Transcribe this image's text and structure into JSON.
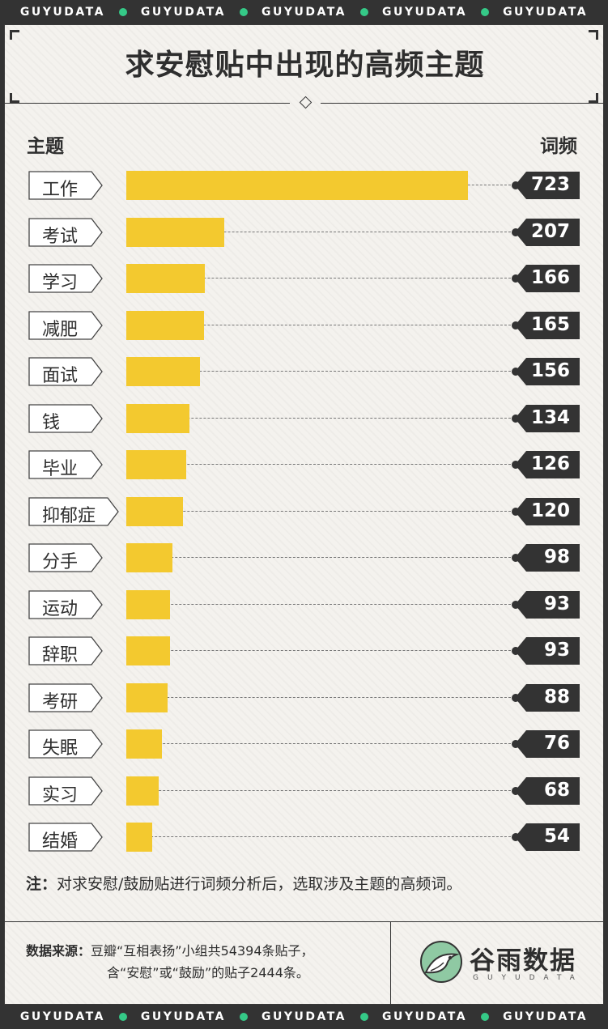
{
  "strip": {
    "words": [
      "GUYUDATA",
      "GUYUDATA",
      "GUYUDATA",
      "GUYUDATA",
      "GUYUDATA"
    ]
  },
  "colors": {
    "bar": "#f3c92f",
    "dark": "#333333",
    "accent_dot": "#35c987",
    "logo_green": "#8fc9a3"
  },
  "chart_data": {
    "type": "bar",
    "title": "求安慰贴中出现的高频主题",
    "category_header": "主题",
    "value_header": "词频",
    "categories": [
      "工作",
      "考试",
      "学习",
      "减肥",
      "面试",
      "钱",
      "毕业",
      "抑郁症",
      "分手",
      "运动",
      "辞职",
      "考研",
      "失眠",
      "实习",
      "结婚"
    ],
    "values": [
      723,
      207,
      166,
      165,
      156,
      134,
      126,
      120,
      98,
      93,
      93,
      88,
      76,
      68,
      54
    ],
    "values_text": [
      "723",
      "207",
      "166",
      "165",
      "156",
      "134",
      "126",
      "120",
      "98",
      "93",
      "93",
      "88",
      "76",
      "68",
      "54"
    ],
    "orientation": "horizontal",
    "xlim": [
      0,
      723
    ]
  },
  "note": {
    "label": "注：",
    "text": "对求安慰/鼓励贴进行词频分析后，选取涉及主题的高频词。"
  },
  "source": {
    "label": "数据来源：",
    "line1": "豆瓣“互相表扬”小组共54394条贴子，",
    "line2": "含“安慰”或“鼓励”的贴子2444条。"
  },
  "brand": {
    "name": "谷雨数据",
    "sub": "GUYUDATA",
    "logo_icon": "bird-icon"
  }
}
